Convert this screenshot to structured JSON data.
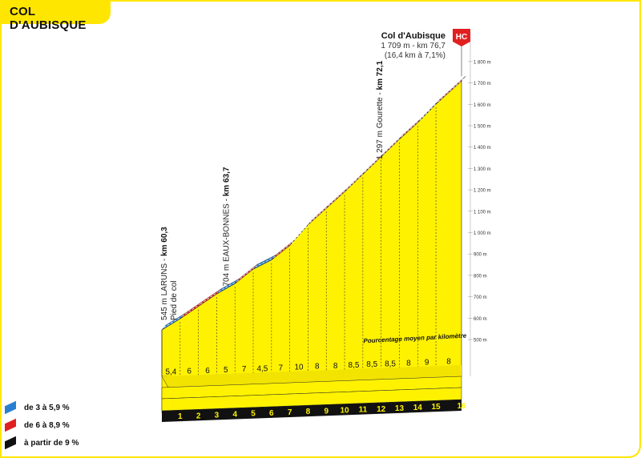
{
  "title": "COL D'AUBISQUE",
  "summit": {
    "name": "Col d'Aubisque",
    "line1": "1 709 m - km 76,7",
    "line2": "(16,4 km à 7,1%)",
    "category": "HC"
  },
  "landmarks": [
    {
      "km": 0,
      "elev": 545,
      "label_plain": "545 m LARUNS - ",
      "label_bold": "km 60,3",
      "sub": "Pied de col"
    },
    {
      "km": 3.4,
      "elev": 704,
      "label_plain": "704 m EAUX-BONNES - ",
      "label_bold": "km 63,7",
      "sub": ""
    },
    {
      "km": 11.8,
      "elev": 1297,
      "label_plain": "1 297 m Gourette - ",
      "label_bold": "km 72,1",
      "sub": ""
    }
  ],
  "annotation": "Pourcentage moyen par kilomètre",
  "legend": [
    {
      "label": "de 3 à 5,9 %",
      "color": "#2a7fd0"
    },
    {
      "label": "de 6 à 8,9 %",
      "color": "#e02020"
    },
    {
      "label": "à partir de 9 %",
      "color": "#111111"
    }
  ],
  "chart_data": {
    "type": "area",
    "x_unit": "km",
    "y_unit": "m",
    "ylim": [
      500,
      1800
    ],
    "y_ticks": [
      "500 m",
      "600 m",
      "700 m",
      "800 m",
      "900 m",
      "1 000 m",
      "1 100 m",
      "1 200 m",
      "1 300 m",
      "1 400 m",
      "1 500 m",
      "1 600 m",
      "1 700 m",
      "1 800 m"
    ],
    "y_tick_values": [
      500,
      600,
      700,
      800,
      900,
      1000,
      1100,
      1200,
      1300,
      1400,
      1500,
      1600,
      1700,
      1800
    ],
    "km_labels": [
      "1",
      "2",
      "3",
      "4",
      "5",
      "6",
      "7",
      "8",
      "9",
      "10",
      "11",
      "12",
      "13",
      "14",
      "15",
      "16"
    ],
    "gradients": [
      "5,4",
      "6",
      "6",
      "5",
      "7",
      "4,5",
      "7",
      "10",
      "8",
      "8",
      "8,5",
      "8,5",
      "8,5",
      "8",
      "9",
      "8"
    ],
    "gradient_values": [
      5.4,
      6,
      6,
      5,
      7,
      4.5,
      7,
      10,
      8,
      8,
      8.5,
      8.5,
      8.5,
      8,
      9,
      8
    ],
    "start_elevation": 545,
    "summit_elevation": 1709,
    "length_km": 16.4
  }
}
